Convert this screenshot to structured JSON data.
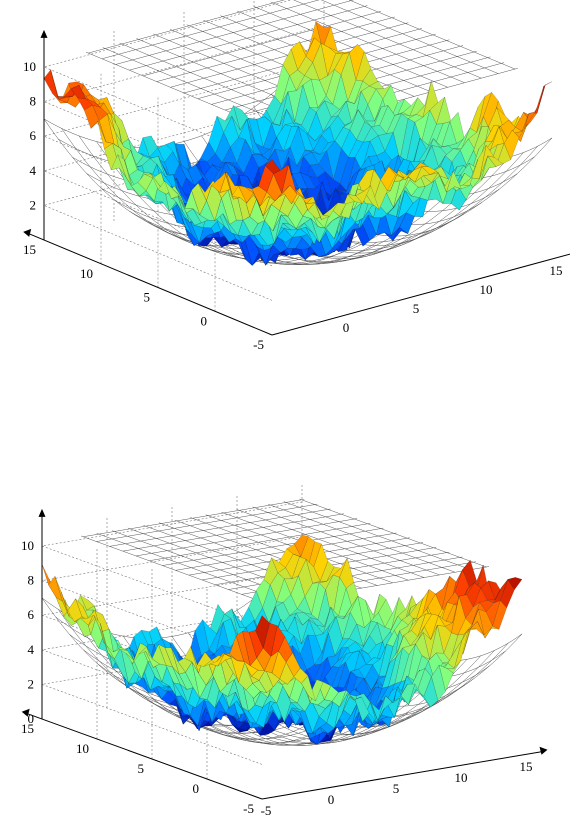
{
  "chart_data": [
    {
      "type": "surface",
      "title": "",
      "xlabel": "",
      "ylabel": "",
      "zlabel": "",
      "x_range": [
        -5,
        15
      ],
      "y_range": [
        -5,
        15
      ],
      "z_range": [
        0,
        11
      ],
      "x_ticks": [
        "0",
        "5",
        "10",
        "15"
      ],
      "y_ticks": [
        "15",
        "10",
        "5",
        "0",
        "-5"
      ],
      "z_ticks": [
        "2",
        "4",
        "6",
        "8",
        "10"
      ],
      "grid": true,
      "colormap": [
        "#00008f",
        "#0050ff",
        "#00d0ff",
        "#80ff80",
        "#ffd000",
        "#ff4000",
        "#a00000"
      ],
      "surfaces": [
        "colored surface",
        "gray mesh plane",
        "gray mesh paraboloid"
      ]
    },
    {
      "type": "surface",
      "title": "",
      "xlabel": "",
      "ylabel": "",
      "zlabel": "",
      "x_range": [
        -5,
        15
      ],
      "y_range": [
        -5,
        15
      ],
      "z_range": [
        0,
        11
      ],
      "x_ticks": [
        "-5",
        "0",
        "5",
        "10",
        "15"
      ],
      "y_ticks": [
        "15",
        "10",
        "5",
        "0",
        "-5"
      ],
      "z_ticks": [
        "0",
        "2",
        "4",
        "6",
        "8",
        "10"
      ],
      "grid": true,
      "colormap": [
        "#00008f",
        "#0050ff",
        "#00d0ff",
        "#80ff80",
        "#ffd000",
        "#ff4000",
        "#a00000"
      ],
      "surfaces": [
        "colored surface",
        "gray mesh plane",
        "gray mesh paraboloid"
      ]
    }
  ]
}
